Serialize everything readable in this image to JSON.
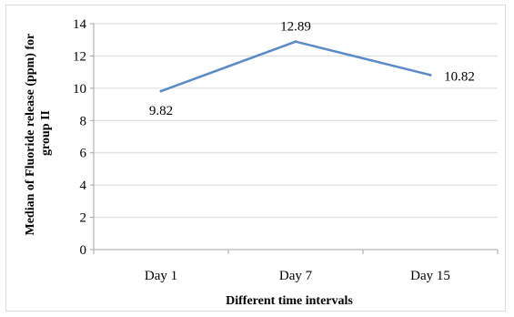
{
  "chart_data": {
    "type": "line",
    "categories": [
      "Day 1",
      "Day 7",
      "Day 15"
    ],
    "series": [
      {
        "values": [
          9.82,
          12.89,
          10.82
        ]
      }
    ],
    "data_labels": [
      "9.82",
      "12.89",
      "10.82"
    ],
    "xlabel": "Different time intervals",
    "ylabel_lines": [
      "Median of Fluoride release (ppm) for",
      "group II"
    ],
    "ylim": [
      0,
      14
    ],
    "yticks": [
      0,
      2,
      4,
      6,
      8,
      10,
      12,
      14
    ],
    "grid": true,
    "legend": "none",
    "line_color": "#5b8ac6",
    "grid_color": "#d9d9d9",
    "axis_color": "#a6a6a6"
  }
}
